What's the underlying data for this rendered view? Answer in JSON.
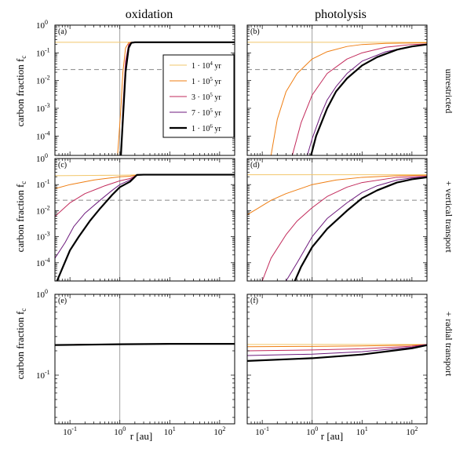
{
  "figure": {
    "column_titles": [
      "oxidation",
      "photolysis"
    ],
    "row_labels": [
      "unrestricted",
      "+ vertical transport",
      "+ radial transport"
    ],
    "ylabel": "carbon fraction f",
    "ylabel_sub": "c",
    "xlabel": "r [au]"
  },
  "legend": {
    "entries": [
      {
        "mantissa": "1 · 10",
        "exp": "4",
        "unit": "yr",
        "color": "#f2c76b",
        "width": 1
      },
      {
        "mantissa": "1 · 10",
        "exp": "5",
        "unit": "yr",
        "color": "#ef7e12",
        "width": 1
      },
      {
        "mantissa": "3 · 10",
        "exp": "5",
        "unit": "yr",
        "color": "#c22a5b",
        "width": 1
      },
      {
        "mantissa": "7 · 10",
        "exp": "5",
        "unit": "yr",
        "color": "#6d1a7c",
        "width": 1
      },
      {
        "mantissa": "1 · 10",
        "exp": "6",
        "unit": "yr",
        "color": "#000000",
        "width": 2.2
      }
    ]
  },
  "chart_data": [
    {
      "type": "line",
      "panel": "(a)",
      "title": "oxidation",
      "row": "unrestricted",
      "xscale": "log",
      "yscale": "log",
      "xlim": [
        0.05,
        200
      ],
      "ylim": [
        2e-05,
        1
      ],
      "xlabel": "",
      "ylabel": "carbon fraction f_c",
      "vline": 1,
      "hline": 0.025,
      "x": [
        0.05,
        0.9,
        1.05,
        1.15,
        1.3,
        1.5,
        1.7,
        2.0,
        3.0,
        200
      ],
      "series": [
        {
          "name": "1 · 10^4 yr",
          "values": [
            0.24,
            0.24,
            0.24,
            0.24,
            0.24,
            0.24,
            0.24,
            0.24,
            0.24,
            0.24
          ]
        },
        {
          "name": "1 · 10^5 yr",
          "values": [
            null,
            2e-05,
            0.001,
            0.02,
            0.15,
            0.23,
            0.24,
            0.24,
            0.24,
            0.24
          ]
        },
        {
          "name": "3 · 10^5 yr",
          "values": [
            null,
            null,
            2e-05,
            0.001,
            0.05,
            0.2,
            0.24,
            0.24,
            0.24,
            0.24
          ]
        },
        {
          "name": "7 · 10^5 yr",
          "values": [
            null,
            null,
            1.5e-05,
            0.0006,
            0.03,
            0.18,
            0.235,
            0.24,
            0.24,
            0.24
          ]
        },
        {
          "name": "1 · 10^6 yr",
          "values": [
            null,
            null,
            1e-05,
            0.0004,
            0.02,
            0.15,
            0.23,
            0.24,
            0.24,
            0.24
          ]
        }
      ]
    },
    {
      "type": "line",
      "panel": "(b)",
      "title": "photolysis",
      "row": "unrestricted",
      "xscale": "log",
      "yscale": "log",
      "xlim": [
        0.05,
        200
      ],
      "ylim": [
        2e-05,
        1
      ],
      "vline": 1,
      "hline": 0.025,
      "series": [
        {
          "name": "1 · 10^4 yr",
          "x": [
            0.05,
            1,
            10,
            100,
            200
          ],
          "values": [
            0.24,
            0.24,
            0.24,
            0.24,
            0.24
          ]
        },
        {
          "name": "1 · 10^5 yr",
          "x": [
            0.15,
            0.2,
            0.3,
            0.5,
            1,
            2,
            5,
            10,
            30,
            200
          ],
          "values": [
            2e-05,
            0.0004,
            0.004,
            0.018,
            0.06,
            0.11,
            0.17,
            0.2,
            0.22,
            0.23
          ]
        },
        {
          "name": "3 · 10^5 yr",
          "x": [
            0.4,
            0.6,
            1,
            2,
            5,
            10,
            30,
            100,
            200
          ],
          "values": [
            2e-05,
            0.0003,
            0.003,
            0.018,
            0.06,
            0.1,
            0.16,
            0.2,
            0.21
          ]
        },
        {
          "name": "7 · 10^5 yr",
          "x": [
            0.8,
            1,
            1.5,
            2,
            3,
            5,
            10,
            30,
            100,
            200
          ],
          "values": [
            2e-05,
            8e-05,
            0.0006,
            0.002,
            0.006,
            0.018,
            0.05,
            0.11,
            0.17,
            0.2
          ]
        },
        {
          "name": "1 · 10^6 yr",
          "x": [
            0.95,
            1.2,
            2,
            3,
            5,
            10,
            20,
            50,
            100,
            200
          ],
          "values": [
            2e-05,
            0.0001,
            0.001,
            0.004,
            0.012,
            0.035,
            0.07,
            0.13,
            0.17,
            0.2
          ]
        }
      ]
    },
    {
      "type": "line",
      "panel": "(c)",
      "title": "",
      "row": "+ vertical transport",
      "xscale": "log",
      "yscale": "log",
      "xlim": [
        0.05,
        200
      ],
      "ylim": [
        2e-05,
        1
      ],
      "xlabel": "",
      "ylabel": "carbon fraction f_c",
      "vline": 1,
      "hline": 0.025,
      "series": [
        {
          "name": "1 · 10^4 yr",
          "x": [
            0.05,
            0.3,
            1,
            2,
            200
          ],
          "values": [
            0.22,
            0.225,
            0.23,
            0.235,
            0.24
          ]
        },
        {
          "name": "1 · 10^5 yr",
          "x": [
            0.05,
            0.1,
            0.3,
            1,
            1.6,
            2.2,
            3,
            200
          ],
          "values": [
            0.07,
            0.1,
            0.15,
            0.2,
            0.21,
            0.235,
            0.24,
            0.24
          ]
        },
        {
          "name": "3 · 10^5 yr",
          "x": [
            0.05,
            0.1,
            0.2,
            0.5,
            1,
            1.6,
            2.2,
            3,
            200
          ],
          "values": [
            0.006,
            0.02,
            0.045,
            0.09,
            0.14,
            0.17,
            0.235,
            0.24,
            0.24
          ]
        },
        {
          "name": "7 · 10^5 yr",
          "x": [
            0.05,
            0.08,
            0.12,
            0.2,
            0.4,
            0.7,
            1,
            1.6,
            2.2,
            3,
            200
          ],
          "values": [
            0.00015,
            0.0006,
            0.0025,
            0.008,
            0.025,
            0.06,
            0.1,
            0.15,
            0.235,
            0.24,
            0.24
          ]
        },
        {
          "name": "1 · 10^6 yr",
          "x": [
            0.055,
            0.07,
            0.1,
            0.15,
            0.25,
            0.4,
            0.7,
            1,
            1.6,
            2.2,
            3,
            200
          ],
          "values": [
            2e-05,
            6e-05,
            0.0003,
            0.001,
            0.004,
            0.012,
            0.04,
            0.08,
            0.13,
            0.235,
            0.24,
            0.24
          ]
        }
      ]
    },
    {
      "type": "line",
      "panel": "(d)",
      "title": "",
      "row": "+ vertical transport",
      "xscale": "log",
      "yscale": "log",
      "xlim": [
        0.05,
        200
      ],
      "ylim": [
        2e-05,
        1
      ],
      "vline": 1,
      "hline": 0.025,
      "series": [
        {
          "name": "1 · 10^4 yr",
          "x": [
            0.05,
            1,
            10,
            200
          ],
          "values": [
            0.24,
            0.24,
            0.24,
            0.24
          ]
        },
        {
          "name": "1 · 10^5 yr",
          "x": [
            0.05,
            0.08,
            0.15,
            0.3,
            1,
            3,
            10,
            50,
            200
          ],
          "values": [
            0.007,
            0.012,
            0.025,
            0.045,
            0.1,
            0.15,
            0.19,
            0.22,
            0.23
          ]
        },
        {
          "name": "3 · 10^5 yr",
          "x": [
            0.1,
            0.15,
            0.3,
            0.5,
            1,
            2,
            5,
            10,
            50,
            200
          ],
          "values": [
            2e-05,
            0.00015,
            0.0012,
            0.004,
            0.013,
            0.035,
            0.08,
            0.12,
            0.19,
            0.21
          ]
        },
        {
          "name": "7 · 10^5 yr",
          "x": [
            0.3,
            0.5,
            1,
            2,
            5,
            10,
            20,
            50,
            100,
            200
          ],
          "values": [
            2e-05,
            0.0001,
            0.001,
            0.005,
            0.02,
            0.05,
            0.09,
            0.15,
            0.18,
            0.2
          ]
        },
        {
          "name": "1 · 10^6 yr",
          "x": [
            0.45,
            0.6,
            1,
            2,
            5,
            10,
            20,
            50,
            100,
            200
          ],
          "values": [
            2e-05,
            7e-05,
            0.0004,
            0.002,
            0.01,
            0.03,
            0.06,
            0.12,
            0.16,
            0.19
          ]
        }
      ]
    },
    {
      "type": "line",
      "panel": "(e)",
      "title": "",
      "row": "+ radial transport",
      "xscale": "log",
      "yscale": "log",
      "xlim": [
        0.05,
        200
      ],
      "ylim": [
        0.025,
        1
      ],
      "xlabel": "r [au]",
      "ylabel": "carbon fraction f_c",
      "vline": 1,
      "series": [
        {
          "name": "1 · 10^4 yr",
          "x": [
            0.05,
            1,
            10,
            200
          ],
          "values": [
            0.238,
            0.242,
            0.245,
            0.245
          ]
        },
        {
          "name": "1 · 10^5 yr",
          "x": [
            0.05,
            1,
            10,
            200
          ],
          "values": [
            0.238,
            0.242,
            0.245,
            0.245
          ]
        },
        {
          "name": "3 · 10^5 yr",
          "x": [
            0.05,
            1,
            10,
            200
          ],
          "values": [
            0.238,
            0.242,
            0.245,
            0.245
          ]
        },
        {
          "name": "7 · 10^5 yr",
          "x": [
            0.05,
            1,
            10,
            200
          ],
          "values": [
            0.238,
            0.242,
            0.245,
            0.245
          ]
        },
        {
          "name": "1 · 10^6 yr",
          "x": [
            0.05,
            1,
            10,
            200
          ],
          "values": [
            0.236,
            0.241,
            0.244,
            0.244
          ]
        }
      ]
    },
    {
      "type": "line",
      "panel": "(f)",
      "title": "",
      "row": "+ radial transport",
      "xscale": "log",
      "yscale": "log",
      "xlim": [
        0.05,
        200
      ],
      "ylim": [
        0.025,
        1
      ],
      "xlabel": "r [au]",
      "vline": 1,
      "series": [
        {
          "name": "1 · 10^4 yr",
          "x": [
            0.05,
            1,
            10,
            200
          ],
          "values": [
            0.24,
            0.24,
            0.24,
            0.24
          ]
        },
        {
          "name": "1 · 10^5 yr",
          "x": [
            0.05,
            1,
            10,
            100,
            200
          ],
          "values": [
            0.225,
            0.227,
            0.23,
            0.235,
            0.24
          ]
        },
        {
          "name": "3 · 10^5 yr",
          "x": [
            0.05,
            1,
            10,
            100,
            200
          ],
          "values": [
            0.2,
            0.205,
            0.212,
            0.228,
            0.24
          ]
        },
        {
          "name": "7 · 10^5 yr",
          "x": [
            0.05,
            1,
            10,
            100,
            200
          ],
          "values": [
            0.175,
            0.182,
            0.195,
            0.222,
            0.24
          ]
        },
        {
          "name": "1 · 10^6 yr",
          "x": [
            0.05,
            1,
            10,
            100,
            200
          ],
          "values": [
            0.15,
            0.162,
            0.18,
            0.215,
            0.235
          ]
        }
      ]
    }
  ]
}
